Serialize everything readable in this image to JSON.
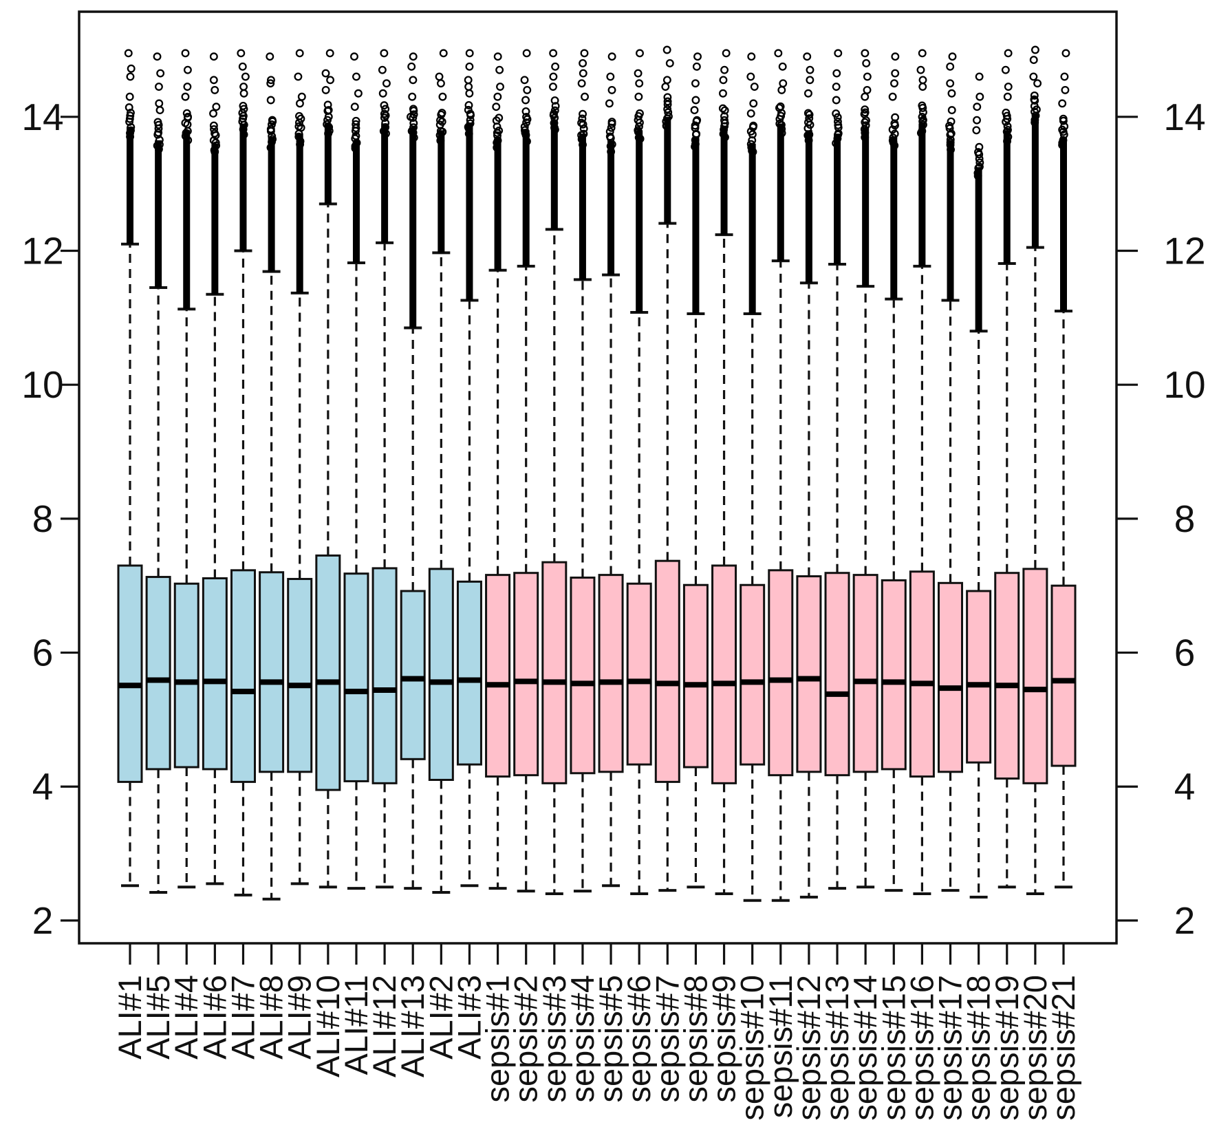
{
  "chart_data": {
    "type": "boxplot",
    "title": "",
    "xlabel": "",
    "ylabel": "",
    "ylim": [
      1.66,
      15.57
    ],
    "y_ticks": [
      2,
      4,
      6,
      8,
      10,
      12,
      14
    ],
    "y_axis_sides": [
      "left",
      "right"
    ],
    "grid": false,
    "legend": "none",
    "stroke_color": "#111111",
    "median_color": "#000000",
    "groups": [
      {
        "name": "ALI",
        "fill": "#ADD8E6"
      },
      {
        "name": "sepsis",
        "fill": "#FFC0CB"
      }
    ],
    "columns": [
      {
        "label": "ALI#1",
        "group": "ALI",
        "whisker_low": 2.52,
        "q1": 4.07,
        "median": 5.51,
        "q3": 7.3,
        "whisker_high": 12.1,
        "outlier_band_top": 14.15,
        "outlier_points": [
          14.95,
          14.72,
          14.6,
          14.3
        ]
      },
      {
        "label": "ALI#5",
        "group": "ALI",
        "whisker_low": 2.42,
        "q1": 4.26,
        "median": 5.59,
        "q3": 7.13,
        "whisker_high": 11.45,
        "outlier_band_top": 13.95,
        "outlier_points": [
          14.9,
          14.65,
          14.45,
          14.2,
          14.1
        ]
      },
      {
        "label": "ALI#4",
        "group": "ALI",
        "whisker_low": 2.5,
        "q1": 4.29,
        "median": 5.56,
        "q3": 7.03,
        "whisker_high": 11.13,
        "outlier_band_top": 14.1,
        "outlier_points": [
          14.95,
          14.7,
          14.45,
          14.3
        ]
      },
      {
        "label": "ALI#6",
        "group": "ALI",
        "whisker_low": 2.55,
        "q1": 4.26,
        "median": 5.57,
        "q3": 7.11,
        "whisker_high": 11.35,
        "outlier_band_top": 13.9,
        "outlier_points": [
          14.9,
          14.55,
          14.4,
          14.15,
          14.05
        ]
      },
      {
        "label": "ALI#7",
        "group": "ALI",
        "whisker_low": 2.38,
        "q1": 4.07,
        "median": 5.42,
        "q3": 7.23,
        "whisker_high": 12.0,
        "outlier_band_top": 14.2,
        "outlier_points": [
          14.95,
          14.75,
          14.6,
          14.45,
          14.35
        ]
      },
      {
        "label": "ALI#8",
        "group": "ALI",
        "whisker_low": 2.32,
        "q1": 4.22,
        "median": 5.56,
        "q3": 7.2,
        "whisker_high": 11.69,
        "outlier_band_top": 14.0,
        "outlier_points": [
          14.9,
          14.55,
          14.5,
          14.25
        ]
      },
      {
        "label": "ALI#9",
        "group": "ALI",
        "whisker_low": 2.55,
        "q1": 4.22,
        "median": 5.51,
        "q3": 7.1,
        "whisker_high": 11.37,
        "outlier_band_top": 14.05,
        "outlier_points": [
          14.95,
          14.6,
          14.3,
          14.2
        ]
      },
      {
        "label": "ALI#10",
        "group": "ALI",
        "whisker_low": 2.5,
        "q1": 3.95,
        "median": 5.56,
        "q3": 7.45,
        "whisker_high": 12.7,
        "outlier_band_top": 14.2,
        "outlier_points": [
          14.95,
          14.65,
          14.55,
          14.4
        ]
      },
      {
        "label": "ALI#11",
        "group": "ALI",
        "whisker_low": 2.48,
        "q1": 4.08,
        "median": 5.42,
        "q3": 7.18,
        "whisker_high": 11.82,
        "outlier_band_top": 13.95,
        "outlier_points": [
          14.9,
          14.6,
          14.35,
          14.15
        ]
      },
      {
        "label": "ALI#12",
        "group": "ALI",
        "whisker_low": 2.5,
        "q1": 4.05,
        "median": 5.44,
        "q3": 7.26,
        "whisker_high": 12.12,
        "outlier_band_top": 14.2,
        "outlier_points": [
          14.95,
          14.7,
          14.5,
          14.35
        ]
      },
      {
        "label": "ALI#13",
        "group": "ALI",
        "whisker_low": 2.48,
        "q1": 4.41,
        "median": 5.61,
        "q3": 6.92,
        "whisker_high": 10.85,
        "outlier_band_top": 14.15,
        "outlier_points": [
          14.9,
          14.75,
          14.55,
          14.3,
          14.0
        ]
      },
      {
        "label": "ALI#2",
        "group": "ALI",
        "whisker_low": 2.42,
        "q1": 4.1,
        "median": 5.56,
        "q3": 7.25,
        "whisker_high": 11.97,
        "outlier_band_top": 14.1,
        "outlier_points": [
          14.95,
          14.6,
          14.5,
          14.3
        ]
      },
      {
        "label": "ALI#3",
        "group": "ALI",
        "whisker_low": 2.52,
        "q1": 4.33,
        "median": 5.59,
        "q3": 7.06,
        "whisker_high": 11.26,
        "outlier_band_top": 14.2,
        "outlier_points": [
          14.95,
          14.75,
          14.55,
          14.45,
          14.35
        ]
      },
      {
        "label": "sepsis#1",
        "group": "sepsis",
        "whisker_low": 2.48,
        "q1": 4.15,
        "median": 5.52,
        "q3": 7.16,
        "whisker_high": 11.71,
        "outlier_band_top": 14.0,
        "outlier_points": [
          14.9,
          14.7,
          14.45,
          14.3,
          14.15
        ]
      },
      {
        "label": "sepsis#2",
        "group": "sepsis",
        "whisker_low": 2.44,
        "q1": 4.17,
        "median": 5.57,
        "q3": 7.19,
        "whisker_high": 11.77,
        "outlier_band_top": 14.1,
        "outlier_points": [
          14.95,
          14.55,
          14.4,
          14.25
        ]
      },
      {
        "label": "sepsis#3",
        "group": "sepsis",
        "whisker_low": 2.4,
        "q1": 4.05,
        "median": 5.56,
        "q3": 7.35,
        "whisker_high": 12.32,
        "outlier_band_top": 14.25,
        "outlier_points": [
          14.95,
          14.75,
          14.6,
          14.45
        ]
      },
      {
        "label": "sepsis#4",
        "group": "sepsis",
        "whisker_low": 2.44,
        "q1": 4.2,
        "median": 5.54,
        "q3": 7.12,
        "whisker_high": 11.57,
        "outlier_band_top": 14.05,
        "outlier_points": [
          14.95,
          14.8,
          14.65,
          14.5,
          14.3
        ]
      },
      {
        "label": "sepsis#5",
        "group": "sepsis",
        "whisker_low": 2.52,
        "q1": 4.22,
        "median": 5.56,
        "q3": 7.16,
        "whisker_high": 11.64,
        "outlier_band_top": 13.95,
        "outlier_points": [
          14.9,
          14.6,
          14.4,
          14.2
        ]
      },
      {
        "label": "sepsis#6",
        "group": "sepsis",
        "whisker_low": 2.4,
        "q1": 4.33,
        "median": 5.57,
        "q3": 7.03,
        "whisker_high": 11.08,
        "outlier_band_top": 14.1,
        "outlier_points": [
          14.95,
          14.65,
          14.5,
          14.3
        ]
      },
      {
        "label": "sepsis#7",
        "group": "sepsis",
        "whisker_low": 2.45,
        "q1": 4.07,
        "median": 5.54,
        "q3": 7.37,
        "whisker_high": 12.41,
        "outlier_band_top": 14.3,
        "outlier_points": [
          15.0,
          14.8,
          14.55,
          14.45
        ]
      },
      {
        "label": "sepsis#8",
        "group": "sepsis",
        "whisker_low": 2.5,
        "q1": 4.29,
        "median": 5.52,
        "q3": 7.01,
        "whisker_high": 11.06,
        "outlier_band_top": 14.0,
        "outlier_points": [
          14.9,
          14.75,
          14.5,
          14.25,
          14.1
        ]
      },
      {
        "label": "sepsis#9",
        "group": "sepsis",
        "whisker_low": 2.4,
        "q1": 4.05,
        "median": 5.54,
        "q3": 7.3,
        "whisker_high": 12.24,
        "outlier_band_top": 14.15,
        "outlier_points": [
          14.95,
          14.7,
          14.55,
          14.35
        ]
      },
      {
        "label": "sepsis#10",
        "group": "sepsis",
        "whisker_low": 2.3,
        "q1": 4.33,
        "median": 5.56,
        "q3": 7.01,
        "whisker_high": 11.06,
        "outlier_band_top": 13.9,
        "outlier_points": [
          14.9,
          14.6,
          14.45,
          14.2,
          14.05
        ]
      },
      {
        "label": "sepsis#11",
        "group": "sepsis",
        "whisker_low": 2.3,
        "q1": 4.17,
        "median": 5.59,
        "q3": 7.23,
        "whisker_high": 11.85,
        "outlier_band_top": 14.2,
        "outlier_points": [
          14.95,
          14.75,
          14.5,
          14.4
        ]
      },
      {
        "label": "sepsis#12",
        "group": "sepsis",
        "whisker_low": 2.35,
        "q1": 4.22,
        "median": 5.61,
        "q3": 7.14,
        "whisker_high": 11.52,
        "outlier_band_top": 14.1,
        "outlier_points": [
          14.9,
          14.7,
          14.55,
          14.35
        ]
      },
      {
        "label": "sepsis#13",
        "group": "sepsis",
        "whisker_low": 2.48,
        "q1": 4.17,
        "median": 5.38,
        "q3": 7.19,
        "whisker_high": 11.8,
        "outlier_band_top": 14.05,
        "outlier_points": [
          14.95,
          14.65,
          14.45,
          14.25
        ]
      },
      {
        "label": "sepsis#14",
        "group": "sepsis",
        "whisker_low": 2.5,
        "q1": 4.22,
        "median": 5.57,
        "q3": 7.16,
        "whisker_high": 11.47,
        "outlier_band_top": 14.15,
        "outlier_points": [
          14.95,
          14.8,
          14.6,
          14.4,
          14.3
        ]
      },
      {
        "label": "sepsis#15",
        "group": "sepsis",
        "whisker_low": 2.45,
        "q1": 4.26,
        "median": 5.56,
        "q3": 7.08,
        "whisker_high": 11.28,
        "outlier_band_top": 14.0,
        "outlier_points": [
          14.9,
          14.65,
          14.5,
          14.3
        ]
      },
      {
        "label": "sepsis#16",
        "group": "sepsis",
        "whisker_low": 2.4,
        "q1": 4.15,
        "median": 5.54,
        "q3": 7.21,
        "whisker_high": 11.77,
        "outlier_band_top": 14.2,
        "outlier_points": [
          14.95,
          14.7,
          14.55,
          14.45
        ]
      },
      {
        "label": "sepsis#17",
        "group": "sepsis",
        "whisker_low": 2.45,
        "q1": 4.22,
        "median": 5.47,
        "q3": 7.04,
        "whisker_high": 11.26,
        "outlier_band_top": 13.95,
        "outlier_points": [
          14.9,
          14.75,
          14.5,
          14.35,
          14.1
        ]
      },
      {
        "label": "sepsis#18",
        "group": "sepsis",
        "whisker_low": 2.35,
        "q1": 4.36,
        "median": 5.52,
        "q3": 6.92,
        "whisker_high": 10.8,
        "outlier_band_top": 13.55,
        "outlier_points": [
          14.6,
          14.3,
          14.15,
          13.95,
          13.8
        ]
      },
      {
        "label": "sepsis#19",
        "group": "sepsis",
        "whisker_low": 2.5,
        "q1": 4.12,
        "median": 5.51,
        "q3": 7.19,
        "whisker_high": 11.81,
        "outlier_band_top": 14.1,
        "outlier_points": [
          14.95,
          14.7,
          14.45,
          14.3
        ]
      },
      {
        "label": "sepsis#20",
        "group": "sepsis",
        "whisker_low": 2.4,
        "q1": 4.05,
        "median": 5.45,
        "q3": 7.25,
        "whisker_high": 12.05,
        "outlier_band_top": 14.35,
        "outlier_points": [
          15.0,
          14.85,
          14.6,
          14.5
        ]
      },
      {
        "label": "sepsis#21",
        "group": "sepsis",
        "whisker_low": 2.5,
        "q1": 4.31,
        "median": 5.58,
        "q3": 7.0,
        "whisker_high": 11.1,
        "outlier_band_top": 14.0,
        "outlier_points": [
          14.95,
          14.6,
          14.4,
          14.2
        ]
      }
    ]
  }
}
